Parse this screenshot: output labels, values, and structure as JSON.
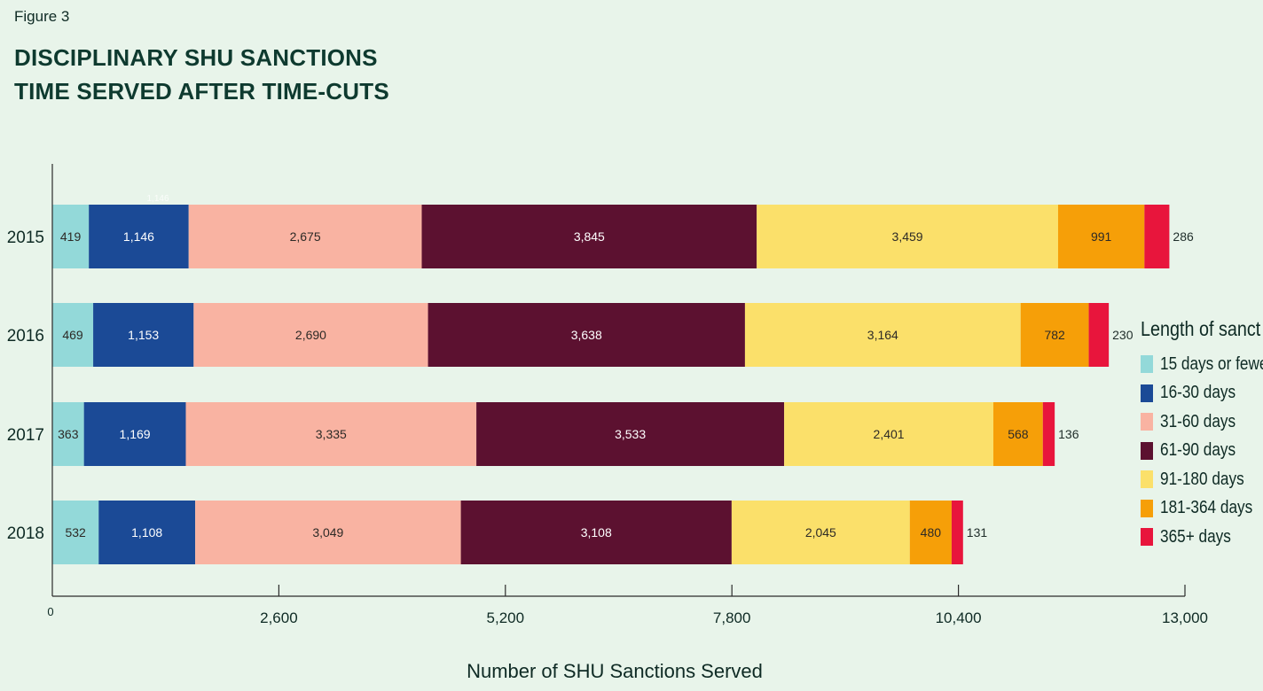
{
  "figure_label": "Figure 3",
  "title_line1": "DISCIPLINARY SHU SANCTIONS",
  "title_line2": "TIME SERVED AFTER TIME-CUTS",
  "legend": {
    "title": "Length of sanct",
    "items": [
      "15 days or fewe",
      "16-30 days",
      "31-60 days",
      "61-90 days",
      "91-180 days",
      "181-364 days",
      "365+ days"
    ]
  },
  "chart_data": {
    "type": "bar",
    "orientation": "horizontal",
    "stacked": true,
    "categories": [
      "2015",
      "2016",
      "2017",
      "2018"
    ],
    "series": [
      {
        "name": "15 days or fewe",
        "color": "#93d9d9",
        "values": [
          419,
          469,
          363,
          532
        ],
        "labels": [
          "419",
          "469",
          "363",
          "532"
        ]
      },
      {
        "name": "16-30 days",
        "color": "#1b4a96",
        "values": [
          1146,
          1153,
          1169,
          1108
        ],
        "labels": [
          "1,146",
          "1,153",
          "1,169",
          "1,108"
        ]
      },
      {
        "name": "31-60 days",
        "color": "#f9b3a2",
        "values": [
          2675,
          2690,
          3335,
          3049
        ],
        "labels": [
          "2,675",
          "2,690",
          "3,335",
          "3,049"
        ]
      },
      {
        "name": "61-90 days",
        "color": "#5c1130",
        "values": [
          3845,
          3638,
          3533,
          3108
        ],
        "labels": [
          "3,845",
          "3,638",
          "3,533",
          "3,108"
        ]
      },
      {
        "name": "91-180 days",
        "color": "#fbe06a",
        "values": [
          3459,
          3164,
          2401,
          2045
        ],
        "labels": [
          "3,459",
          "3,164",
          "2,401",
          "2,045"
        ]
      },
      {
        "name": "181-364 days",
        "color": "#f69f08",
        "values": [
          991,
          782,
          568,
          480
        ],
        "labels": [
          "991",
          "782",
          "568",
          "480"
        ]
      },
      {
        "name": "365+ days",
        "color": "#e8153c",
        "values": [
          286,
          230,
          136,
          131
        ],
        "labels": [
          "286",
          "230",
          "136",
          "131"
        ]
      }
    ],
    "xlim": [
      0,
      13000
    ],
    "xticks": [
      0,
      2600,
      5200,
      7800,
      10400,
      13000
    ],
    "xtick_labels": [
      "0",
      "2,600",
      "5,200",
      "7,800",
      "10,400",
      "13,000"
    ],
    "category_labels": [
      "2015",
      "2016",
      "2017",
      "2018"
    ],
    "xlabel": "Number of SHU Sanctions Served",
    "stray_label": "1,146",
    "grid": false,
    "legend_position": "right"
  }
}
